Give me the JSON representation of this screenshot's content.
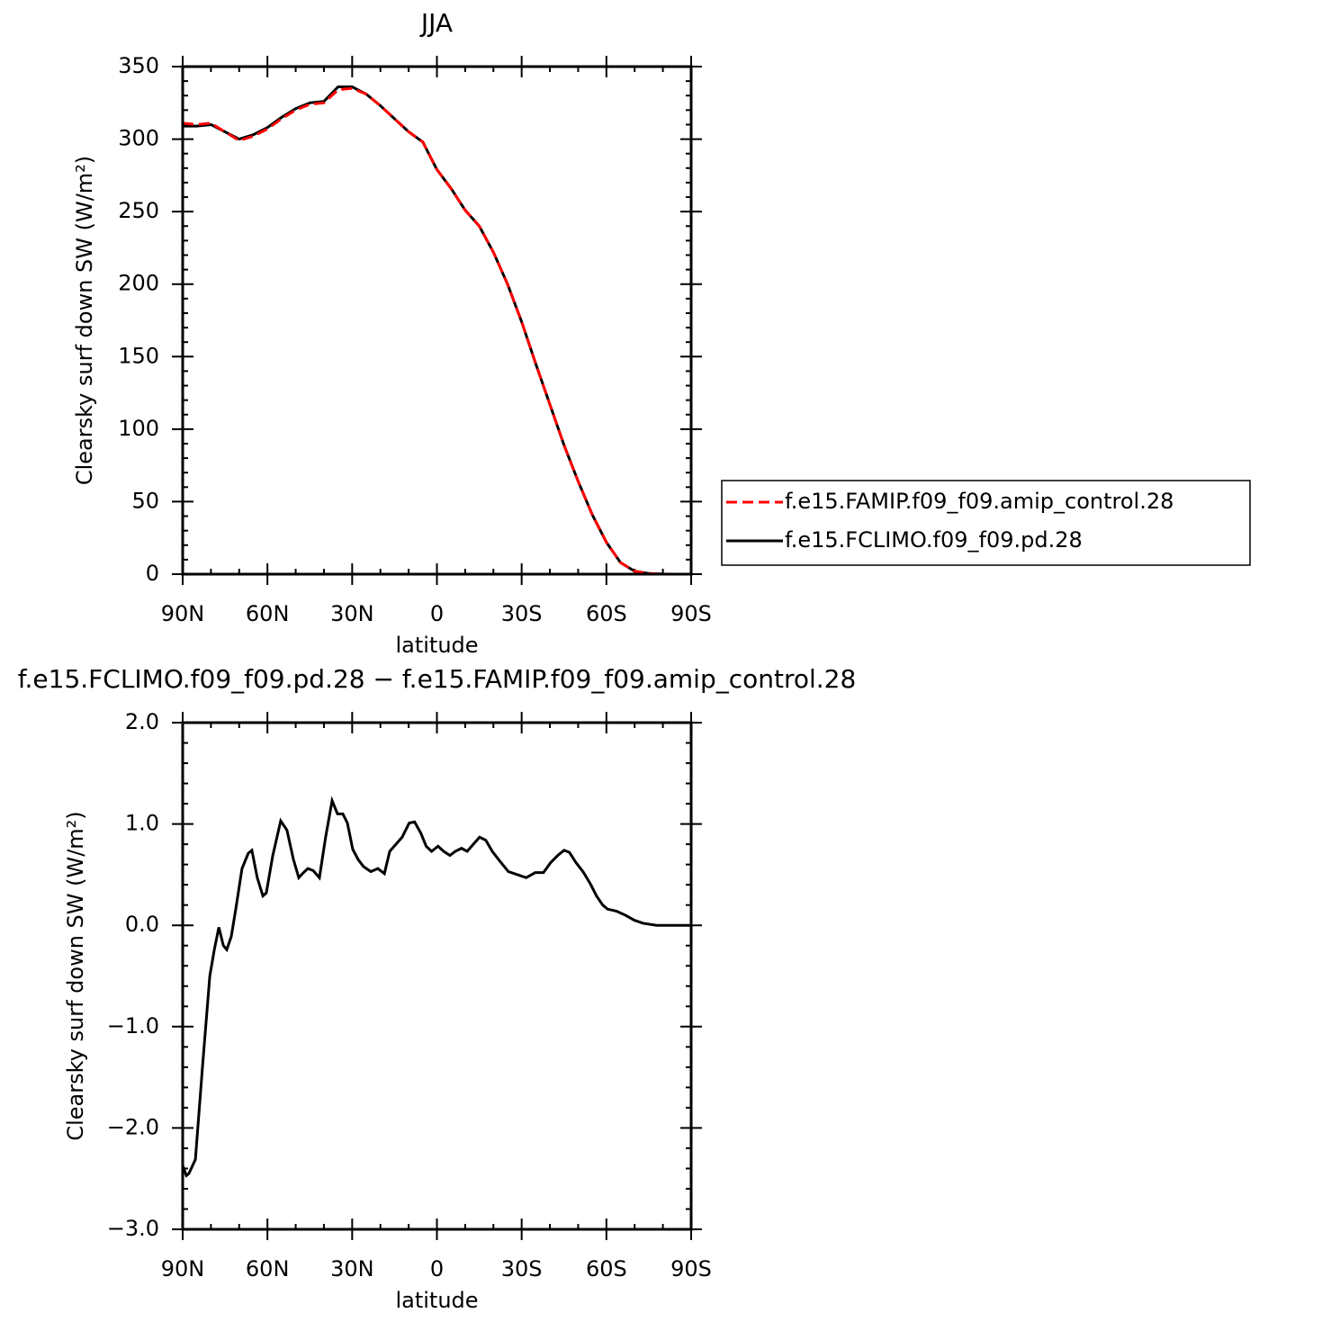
{
  "chart_data": [
    {
      "type": "line",
      "title": "JJA",
      "xlabel": "latitude",
      "ylabel": "Clearsky surf down SW (W/m²)",
      "x": [
        90,
        85,
        80,
        75,
        70,
        65,
        60,
        55,
        50,
        45,
        40,
        35,
        30,
        25,
        20,
        15,
        10,
        5,
        0,
        -5,
        -10,
        -15,
        -20,
        -25,
        -30,
        -35,
        -40,
        -45,
        -50,
        -55,
        -60,
        -65,
        -70,
        -75,
        -80,
        -85,
        -90
      ],
      "xlim": [
        90,
        -90
      ],
      "xticks": [
        {
          "value": 90,
          "label": "90N"
        },
        {
          "value": 60,
          "label": "60N"
        },
        {
          "value": 30,
          "label": "30N"
        },
        0,
        {
          "value": -30,
          "label": "30S"
        },
        {
          "value": -60,
          "label": "60S"
        },
        {
          "value": -90,
          "label": "90S"
        }
      ],
      "ylim": [
        0,
        350
      ],
      "yticks": [
        0,
        50,
        100,
        150,
        200,
        250,
        300,
        350
      ],
      "legend": "right",
      "series": [
        {
          "name": "f.e15.FAMIP.f09_f09.amip_control.28",
          "color": "#ff0000",
          "dash": true,
          "values": [
            311,
            310,
            311,
            305,
            299,
            302,
            307,
            314,
            320,
            324,
            325,
            334,
            335,
            331,
            323,
            314,
            305,
            298,
            279,
            266,
            251,
            240,
            222,
            200,
            174,
            145,
            117,
            89,
            64,
            41,
            22,
            8,
            2,
            0.5,
            0.1,
            0,
            0
          ]
        },
        {
          "name": "f.e15.FCLIMO.f09_f09.pd.28",
          "color": "#000000",
          "dash": false,
          "values": [
            309,
            309,
            310,
            305,
            300,
            303,
            308,
            315,
            321,
            325,
            326,
            336,
            336,
            331,
            323,
            314,
            305,
            298,
            279,
            266,
            251,
            240,
            222,
            200,
            174,
            145,
            117,
            89,
            64,
            41,
            22,
            8,
            2,
            0.5,
            0.1,
            0,
            0
          ]
        }
      ]
    },
    {
      "type": "line",
      "title": "f.e15.FCLIMO.f09_f09.pd.28 − f.e15.FAMIP.f09_f09.amip_control.28",
      "xlabel": "latitude",
      "ylabel": "Clearsky surf down SW (W/m²)",
      "x": [
        90.0,
        88.7,
        87.8,
        85.5,
        83.0,
        80.4,
        78.8,
        77.2,
        75.6,
        74.4,
        72.8,
        71.2,
        69.0,
        66.8,
        65.5,
        63.6,
        61.6,
        60.4,
        58.1,
        55.3,
        53.1,
        50.8,
        48.9,
        47.6,
        45.7,
        43.8,
        41.6,
        39.4,
        37.1,
        35.2,
        33.3,
        31.7,
        29.8,
        27.9,
        26.0,
        23.4,
        20.9,
        18.6,
        16.7,
        14.5,
        12.3,
        9.8,
        7.9,
        5.7,
        3.8,
        1.9,
        -0.4,
        -2.4,
        -4.6,
        -6.5,
        -8.7,
        -10.7,
        -12.9,
        -15.1,
        -17.3,
        -19.6,
        -22.1,
        -25.3,
        -28.5,
        -31.6,
        -34.8,
        -37.7,
        -40.3,
        -42.8,
        -45.0,
        -46.9,
        -49.2,
        -51.7,
        -54.3,
        -56.5,
        -58.7,
        -60.4,
        -63.5,
        -66.7,
        -69.9,
        -73.0,
        -77.8,
        -90
      ],
      "values": [
        -2.37,
        -2.47,
        -2.45,
        -2.31,
        -1.4,
        -0.5,
        -0.24,
        -0.02,
        -0.2,
        -0.24,
        -0.11,
        0.16,
        0.56,
        0.71,
        0.74,
        0.47,
        0.29,
        0.32,
        0.69,
        1.03,
        0.94,
        0.65,
        0.47,
        0.51,
        0.56,
        0.54,
        0.47,
        0.87,
        1.23,
        1.1,
        1.1,
        1.01,
        0.75,
        0.65,
        0.58,
        0.53,
        0.56,
        0.51,
        0.73,
        0.8,
        0.87,
        1.01,
        1.02,
        0.91,
        0.78,
        0.73,
        0.78,
        0.73,
        0.69,
        0.73,
        0.76,
        0.73,
        0.8,
        0.87,
        0.84,
        0.73,
        0.64,
        0.53,
        0.5,
        0.47,
        0.52,
        0.52,
        0.62,
        0.69,
        0.74,
        0.72,
        0.62,
        0.53,
        0.41,
        0.29,
        0.2,
        0.16,
        0.14,
        0.1,
        0.05,
        0.02,
        0,
        0
      ],
      "color": "#000000",
      "xlim": [
        90,
        -90
      ],
      "xticks": [
        {
          "value": 90,
          "label": "90N"
        },
        {
          "value": 60,
          "label": "60N"
        },
        {
          "value": 30,
          "label": "30N"
        },
        0,
        {
          "value": -30,
          "label": "30S"
        },
        {
          "value": -60,
          "label": "60S"
        },
        {
          "value": -90,
          "label": "90S"
        }
      ],
      "ylim": [
        -3,
        2
      ],
      "yticks": [
        {
          "value": -3,
          "label": "−3.0"
        },
        {
          "value": -2,
          "label": "−2.0"
        },
        {
          "value": -1,
          "label": "−1.0"
        },
        {
          "value": 0,
          "label": "0.0"
        },
        {
          "value": 1,
          "label": "1.0"
        },
        {
          "value": 2,
          "label": "2.0"
        }
      ]
    }
  ]
}
